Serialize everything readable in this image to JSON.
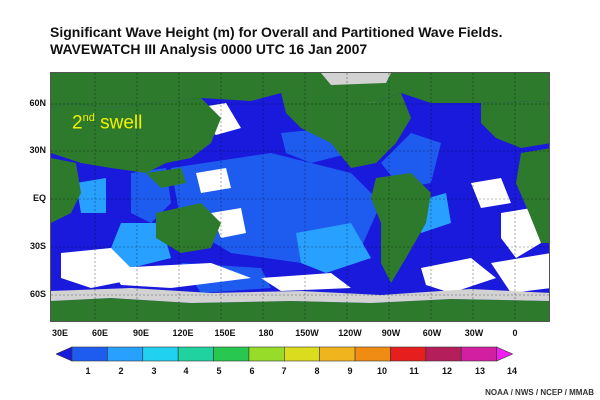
{
  "title_line1": "Significant Wave Height (m) for Overall and Partitioned Wave Fields.",
  "title_line2": "WAVEWATCH III Analysis 0000 UTC 16 Jan 2007",
  "map_label": {
    "main": "2",
    "sup": "nd",
    "rest": " swell"
  },
  "lat_labels": [
    "60N",
    "30N",
    "EQ",
    "30S",
    "60S"
  ],
  "lon_labels": [
    "30E",
    "60E",
    "90E",
    "120E",
    "150E",
    "180",
    "150W",
    "120W",
    "90W",
    "60W",
    "30W",
    "0"
  ],
  "colorbar": {
    "labels": [
      "1",
      "2",
      "3",
      "4",
      "5",
      "6",
      "7",
      "8",
      "9",
      "10",
      "11",
      "12",
      "13",
      "14"
    ],
    "colors": [
      "#1a1adc",
      "#1e5cf0",
      "#28a0ff",
      "#20d2f0",
      "#20d2a0",
      "#28c850",
      "#96dc28",
      "#dcdc1e",
      "#f0b41e",
      "#f08c14",
      "#e61e1e",
      "#b41e5a",
      "#d21ea0",
      "#f01ef0"
    ]
  },
  "colors": {
    "land": "#2d7a2d",
    "ice": "#d2d2d2",
    "no_swell": "#ffffff",
    "ocean_low": "#1a1adc",
    "ocean_mid": "#1e5cf0",
    "ocean_high": "#28a0ff",
    "label_yellow": "#f4f000"
  },
  "credit": "NOAA / NWS / NCEP / MMAB"
}
